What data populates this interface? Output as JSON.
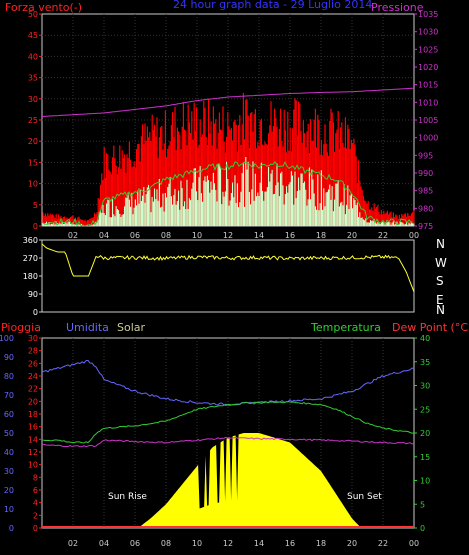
{
  "header": {
    "title": "24 hour graph data - 29 Luglio 2014",
    "left_label": "Forza vento(-)",
    "right_label": "Pressione"
  },
  "lower_header": {
    "rain": "Pioggia",
    "humidity": "Umidita",
    "solar": "Solar",
    "temperature": "Temperatura",
    "dew_point": "Dew Point (°C)"
  },
  "annotations": {
    "sun_rise": "Sun Rise",
    "sun_set": "Sun Set"
  },
  "compass": [
    "N",
    "W",
    "S",
    "E",
    "N"
  ],
  "colors": {
    "wind_gust": "#ff0000",
    "wind_avg": "#33cc33",
    "wind_low": "#ccffcc",
    "pressure": "#cc33cc",
    "direction": "#ffff33",
    "humidity": "#6666ff",
    "temperature": "#33cc33",
    "dew_point": "#cc33cc",
    "solar": "#ffff00",
    "rain": "#ff3333",
    "axis_left_top": "#ff2222",
    "axis_right_top": "#cc33cc",
    "axis_humidity": "#6666ff",
    "axis_rain": "#ff2222",
    "axis_temp": "#33cc33"
  },
  "chart_data": [
    {
      "type": "line",
      "title": "24 hour graph data - 29 Luglio 2014",
      "x_ticks": [
        "02",
        "04",
        "06",
        "08",
        "10",
        "12",
        "14",
        "16",
        "18",
        "20",
        "22",
        "00"
      ],
      "y_left_ticks": [
        0,
        5,
        10,
        15,
        20,
        25,
        30,
        35,
        40,
        45,
        50
      ],
      "y_left_range": [
        0,
        50
      ],
      "y_right_ticks": [
        975,
        980,
        985,
        990,
        995,
        1000,
        1005,
        1010,
        1015,
        1020,
        1025,
        1030,
        1035
      ],
      "y_right_range": [
        975,
        1035
      ],
      "series": [
        {
          "name": "Forza vento",
          "x": [
            0,
            1,
            2,
            3,
            3.5,
            4,
            5,
            6,
            7,
            8,
            9,
            10,
            11,
            12,
            13,
            14,
            15,
            16,
            17,
            18,
            19,
            20,
            20.5,
            21,
            22,
            23,
            24
          ],
          "values": [
            3,
            2,
            2,
            1,
            3,
            14,
            15,
            17,
            19,
            20,
            22,
            22,
            22,
            21,
            23,
            23,
            22,
            22,
            22,
            21,
            20,
            18,
            10,
            5,
            3,
            2,
            3
          ]
        },
        {
          "name": "",
          "x": [
            0,
            1,
            2,
            3,
            3.5,
            4,
            5,
            6,
            7,
            8,
            9,
            10,
            11,
            12,
            13,
            14,
            15,
            16,
            17,
            18,
            19,
            20,
            20.5,
            21,
            22,
            23,
            24
          ],
          "values": [
            1,
            1,
            1,
            0,
            1,
            6,
            7,
            8,
            9,
            11,
            12,
            13,
            14,
            14,
            15,
            14,
            15,
            14,
            13,
            12,
            11,
            8,
            5,
            2,
            1,
            1,
            1
          ]
        },
        {
          "name": "Pressione",
          "x": [
            0,
            2,
            4,
            6,
            8,
            10,
            12,
            14,
            16,
            18,
            20,
            22,
            24
          ],
          "values": [
            1006,
            1006.5,
            1007,
            1008,
            1009,
            1010.5,
            1011.5,
            1012,
            1012.5,
            1012.8,
            1013,
            1013.5,
            1014
          ]
        }
      ]
    },
    {
      "type": "line",
      "x_ticks": [
        "02",
        "04",
        "06",
        "08",
        "10",
        "12",
        "14",
        "16",
        "18",
        "20",
        "22",
        "00"
      ],
      "y_ticks": [
        0,
        90,
        180,
        270,
        360
      ],
      "y_range": [
        0,
        360
      ],
      "series": [
        {
          "name": "",
          "x": [
            0,
            0.3,
            1,
            1.5,
            2,
            3,
            3.5,
            4,
            6,
            8,
            10,
            12,
            14,
            16,
            18,
            20,
            22,
            23,
            23.5,
            24
          ],
          "values": [
            340,
            320,
            300,
            300,
            180,
            180,
            280,
            270,
            272,
            268,
            275,
            270,
            272,
            268,
            270,
            272,
            275,
            270,
            200,
            100
          ]
        }
      ]
    },
    {
      "type": "line",
      "x_ticks": [
        "02",
        "04",
        "06",
        "08",
        "10",
        "12",
        "14",
        "16",
        "18",
        "20",
        "22",
        "00"
      ],
      "y_rain_ticks": [
        0,
        2,
        4,
        6,
        8,
        10,
        12,
        14,
        16,
        18,
        20,
        22,
        24,
        26,
        28,
        30
      ],
      "y_humidity_ticks": [
        0,
        10,
        20,
        30,
        40,
        50,
        60,
        70,
        80,
        90,
        100
      ],
      "y_temp_ticks": [
        0,
        5,
        10,
        15,
        20,
        25,
        30,
        35,
        40
      ],
      "sun_rise_hour": 6.2,
      "sun_set_hour": 20.6,
      "series": [
        {
          "name": "Umidita",
          "x": [
            0,
            1,
            2,
            3,
            3.5,
            4,
            5,
            6,
            7,
            8,
            9,
            10,
            12,
            14,
            16,
            18,
            19,
            20,
            21,
            22,
            23,
            24
          ],
          "values": [
            82,
            84,
            86,
            88,
            85,
            78,
            75,
            72,
            70,
            68,
            67,
            66,
            65,
            66,
            67,
            68,
            70,
            72,
            76,
            80,
            82,
            84
          ]
        },
        {
          "name": "Temperatura",
          "x": [
            0,
            1,
            2,
            3,
            3.5,
            4,
            6,
            8,
            10,
            12,
            14,
            16,
            18,
            19,
            20,
            21,
            22,
            23,
            24
          ],
          "values": [
            18.5,
            18.5,
            18,
            18,
            20,
            21,
            21.5,
            22.5,
            25,
            26,
            26.5,
            26.5,
            26,
            25,
            23.5,
            22,
            21,
            20.5,
            20
          ]
        },
        {
          "name": "Dew Point",
          "x": [
            0,
            2,
            3.5,
            4,
            6,
            8,
            10,
            12,
            14,
            16,
            18,
            20,
            22,
            24
          ],
          "values": [
            17.5,
            17.2,
            17.3,
            18.5,
            18.2,
            18,
            18.5,
            19,
            18.8,
            18.7,
            18.5,
            18.3,
            18,
            17.8
          ]
        },
        {
          "name": "Solar",
          "x": [
            6.2,
            7,
            8,
            9,
            10,
            11,
            12,
            13,
            14,
            15,
            16,
            17,
            18,
            19,
            20,
            20.6
          ],
          "values": [
            0,
            2,
            5,
            9,
            13,
            17,
            19,
            20,
            20,
            19,
            18,
            15,
            12,
            7,
            2,
            0
          ]
        },
        {
          "name": "Pioggia",
          "x": [
            0,
            24
          ],
          "values": [
            0,
            0
          ]
        }
      ]
    }
  ]
}
